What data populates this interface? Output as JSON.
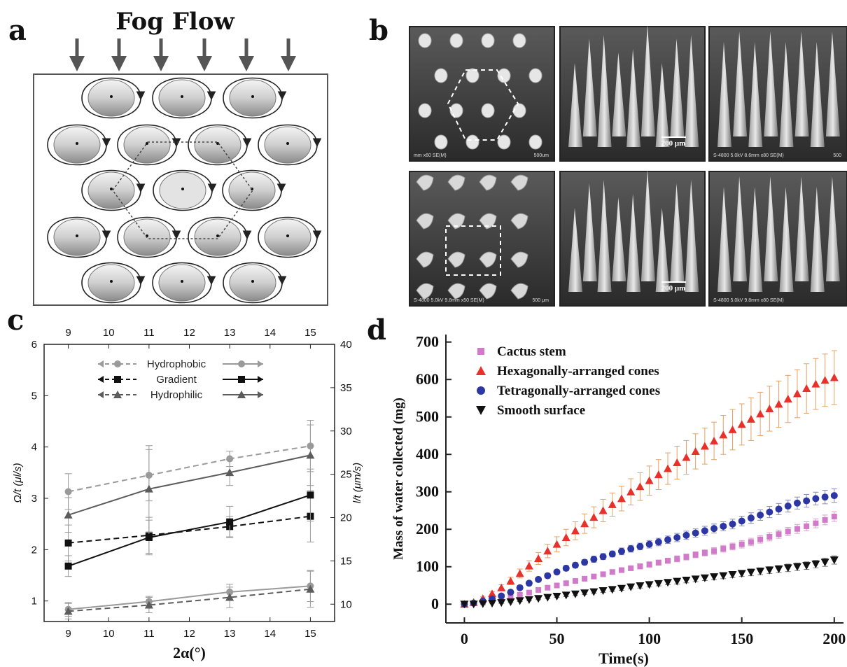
{
  "panels": {
    "a": "a",
    "b": "b",
    "c": "c",
    "d": "d"
  },
  "panel_a": {
    "title": "Fog Flow",
    "grid_rows": [
      [
        4,
        "offset"
      ],
      [
        4,
        "edge"
      ],
      [
        3,
        "offset"
      ],
      [
        4,
        "edge"
      ],
      [
        3,
        "offset"
      ]
    ]
  },
  "panel_b": {
    "images": [
      {
        "name": "sem-hex-top",
        "caption": "mm x60 SE(M)",
        "scale": "500um"
      },
      {
        "name": "sem-hex-tilt",
        "caption": "",
        "scale": "200 μm"
      },
      {
        "name": "sem-hex-side",
        "caption": "S-4800 5.0kV 8.6mm x80 SE(M)",
        "scale": "500"
      },
      {
        "name": "sem-tet-top",
        "caption": "S-4800 5.0kV 9.8mm x50 SE(M)",
        "scale": "500 μm"
      },
      {
        "name": "sem-tet-tilt",
        "caption": "",
        "scale": "200 μm"
      },
      {
        "name": "sem-tet-side",
        "caption": "S-4800 5.0kV 9.8mm x80 SE(M)",
        "scale": ""
      }
    ]
  },
  "chart_data": [
    {
      "type": "line",
      "panel": "c",
      "xlabel": "2α(°)",
      "ylabel_left": "Ω/t (μl/s)",
      "ylabel_right": "l/t (μm/s)",
      "x_ticks_bottom": [
        "9",
        "10",
        "11",
        "12",
        "13",
        "14",
        "15"
      ],
      "x_ticks_top": [
        "9",
        "10",
        "11",
        "12",
        "13",
        "14",
        "15"
      ],
      "y_ticks_left": [
        "1",
        "2",
        "3",
        "4",
        "5",
        "6"
      ],
      "y_ticks_right": [
        "10",
        "15",
        "20",
        "25",
        "30",
        "35",
        "40"
      ],
      "xlim": [
        8.4,
        15.6
      ],
      "ylim_left": [
        0.6,
        6
      ],
      "ylim_right": [
        8,
        40
      ],
      "x": [
        9,
        11,
        13,
        15
      ],
      "legend": [
        {
          "label": "Hydrophobic",
          "color": "#9a9a9a",
          "marker": "circle"
        },
        {
          "label": "Gradient",
          "color": "#111111",
          "marker": "square"
        },
        {
          "label": "Hydrophilic",
          "color": "#5c5c5c",
          "marker": "triangle"
        }
      ],
      "series": [
        {
          "group": "Hydrophobic",
          "axis": "left",
          "dashed": true,
          "color": "#9a9a9a",
          "marker": "circle",
          "values": [
            3.13,
            3.45,
            3.77,
            4.02
          ],
          "err": [
            0.35,
            0.5,
            0.15,
            0.5
          ]
        },
        {
          "group": "Hydrophobic",
          "axis": "right",
          "dashed": false,
          "color": "#9a9a9a",
          "marker": "circle",
          "values": [
            9.4,
            10.3,
            11.4,
            12.1
          ],
          "err": [
            0.8,
            0.6,
            0.9,
            1.8
          ]
        },
        {
          "group": "Gradient",
          "axis": "left",
          "dashed": true,
          "color": "#111111",
          "marker": "square",
          "values": [
            2.13,
            2.28,
            2.45,
            2.65
          ],
          "err": [
            0.35,
            0.35,
            0.2,
            0.5
          ]
        },
        {
          "group": "Gradient",
          "axis": "right",
          "dashed": false,
          "color": "#111111",
          "marker": "square",
          "values": [
            14.4,
            17.7,
            19.5,
            22.6
          ],
          "err": [
            1.2,
            2.0,
            1.8,
            3.0
          ]
        },
        {
          "group": "Hydrophilic",
          "axis": "left",
          "dashed": true,
          "color": "#5c5c5c",
          "marker": "triangle",
          "values": [
            0.8,
            0.92,
            1.07,
            1.23
          ],
          "err": [
            0.15,
            0.15,
            0.2,
            0.35
          ]
        },
        {
          "group": "Hydrophilic",
          "axis": "right",
          "dashed": false,
          "color": "#5c5c5c",
          "marker": "triangle",
          "values": [
            20.3,
            23.3,
            25.2,
            27.2
          ],
          "err": [
            2.0,
            5.0,
            1.5,
            3.5
          ]
        }
      ]
    },
    {
      "type": "scatter",
      "panel": "d",
      "xlabel": "Time(s)",
      "ylabel": "Mass of water collected (mg)",
      "x_ticks": [
        "0",
        "50",
        "100",
        "150",
        "200"
      ],
      "y_ticks": [
        "0",
        "100",
        "200",
        "300",
        "400",
        "500",
        "600",
        "700"
      ],
      "xlim": [
        -10,
        205
      ],
      "ylim": [
        -50,
        720
      ],
      "x": [
        0,
        5,
        10,
        15,
        20,
        25,
        30,
        35,
        40,
        45,
        50,
        55,
        60,
        65,
        70,
        75,
        80,
        85,
        90,
        95,
        100,
        105,
        110,
        115,
        120,
        125,
        130,
        135,
        140,
        145,
        150,
        155,
        160,
        165,
        170,
        175,
        180,
        185,
        190,
        195,
        200
      ],
      "series": [
        {
          "name": "Cactus stem",
          "color": "#d07ac9",
          "marker": "square",
          "values": [
            0,
            2,
            5,
            9,
            14,
            19,
            25,
            31,
            38,
            44,
            50,
            56,
            62,
            68,
            74,
            80,
            86,
            91,
            96,
            101,
            106,
            111,
            116,
            121,
            126,
            132,
            137,
            142,
            148,
            154,
            160,
            166,
            173,
            180,
            187,
            194,
            201,
            208,
            216,
            225,
            234
          ],
          "err": [
            0,
            1,
            1,
            2,
            2,
            3,
            3,
            3,
            4,
            4,
            4,
            5,
            5,
            5,
            5,
            6,
            6,
            6,
            6,
            7,
            7,
            7,
            7,
            8,
            8,
            8,
            8,
            9,
            9,
            9,
            10,
            10,
            10,
            11,
            11,
            11,
            12,
            12,
            12,
            13,
            13
          ]
        },
        {
          "name": "Hexagonally-arranged cones",
          "color": "#e8312a",
          "marker": "triangle",
          "values": [
            0,
            5,
            15,
            28,
            44,
            62,
            82,
            102,
            122,
            142,
            160,
            178,
            196,
            215,
            232,
            250,
            266,
            282,
            300,
            314,
            330,
            346,
            362,
            378,
            392,
            408,
            422,
            436,
            452,
            466,
            480,
            494,
            508,
            522,
            534,
            548,
            562,
            576,
            588,
            598,
            605
          ],
          "err": [
            0,
            2,
            4,
            6,
            8,
            10,
            12,
            14,
            16,
            18,
            20,
            22,
            24,
            26,
            28,
            30,
            31,
            33,
            35,
            37,
            39,
            40,
            42,
            44,
            45,
            47,
            48,
            50,
            52,
            54,
            55,
            57,
            58,
            60,
            62,
            63,
            64,
            66,
            68,
            70,
            72
          ]
        },
        {
          "name": "Tetragonally-arranged cones",
          "color": "#2d37a4",
          "marker": "circle",
          "values": [
            0,
            3,
            8,
            14,
            22,
            32,
            44,
            56,
            66,
            76,
            86,
            96,
            104,
            112,
            120,
            127,
            134,
            141,
            148,
            154,
            160,
            166,
            172,
            178,
            184,
            190,
            196,
            202,
            208,
            214,
            222,
            230,
            238,
            246,
            254,
            262,
            270,
            276,
            282,
            286,
            290
          ],
          "err": [
            0,
            2,
            3,
            3,
            4,
            4,
            5,
            5,
            6,
            6,
            6,
            7,
            7,
            7,
            8,
            8,
            8,
            9,
            9,
            9,
            10,
            10,
            10,
            11,
            11,
            11,
            12,
            12,
            12,
            13,
            13,
            14,
            14,
            15,
            15,
            16,
            16,
            17,
            17,
            18,
            18
          ]
        },
        {
          "name": "Smooth surface",
          "color": "#111111",
          "marker": "triangle-down",
          "values": [
            0,
            0,
            1,
            2,
            4,
            6,
            9,
            12,
            15,
            18,
            21,
            24,
            27,
            30,
            33,
            36,
            39,
            42,
            46,
            49,
            52,
            55,
            58,
            61,
            64,
            67,
            70,
            73,
            76,
            79,
            82,
            85,
            88,
            91,
            94,
            97,
            100,
            103,
            107,
            112,
            118
          ],
          "err": [
            0,
            1,
            1,
            1,
            2,
            2,
            2,
            3,
            3,
            3,
            3,
            4,
            4,
            4,
            4,
            5,
            5,
            5,
            5,
            6,
            6,
            6,
            6,
            7,
            7,
            7,
            7,
            8,
            8,
            8,
            8,
            9,
            9,
            9,
            9,
            10,
            10,
            10,
            10,
            11,
            11
          ]
        }
      ]
    }
  ]
}
